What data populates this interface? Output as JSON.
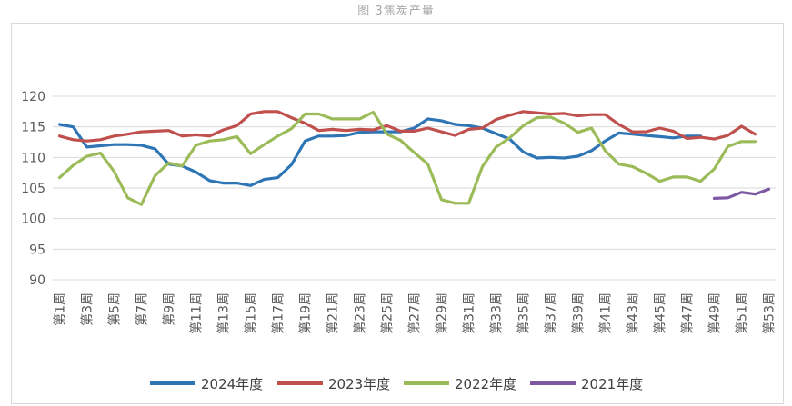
{
  "caption": "图 3焦炭产量",
  "chart_data": {
    "type": "line",
    "title": "图 3焦炭产量",
    "xlabel": "",
    "ylabel": "",
    "ylim": [
      90,
      120
    ],
    "yticks": [
      90,
      95,
      100,
      105,
      110,
      115,
      120
    ],
    "grid": true,
    "legend_position": "bottom",
    "x": [
      "第1周",
      "第2周",
      "第3周",
      "第4周",
      "第5周",
      "第6周",
      "第7周",
      "第8周",
      "第9周",
      "第10周",
      "第11周",
      "第12周",
      "第13周",
      "第14周",
      "第15周",
      "第16周",
      "第17周",
      "第18周",
      "第19周",
      "第20周",
      "第21周",
      "第22周",
      "第23周",
      "第24周",
      "第25周",
      "第26周",
      "第27周",
      "第28周",
      "第29周",
      "第30周",
      "第31周",
      "第32周",
      "第33周",
      "第34周",
      "第35周",
      "第36周",
      "第37周",
      "第38周",
      "第39周",
      "第40周",
      "第41周",
      "第42周",
      "第43周",
      "第44周",
      "第45周",
      "第46周",
      "第47周",
      "第48周",
      "第49周",
      "第50周",
      "第51周",
      "第52周",
      "第53周"
    ],
    "tick_labels": [
      "第1周",
      "第3周",
      "第5周",
      "第7周",
      "第9周",
      "第11周",
      "第13周",
      "第15周",
      "第17周",
      "第19周",
      "第21周",
      "第23周",
      "第25周",
      "第27周",
      "第29周",
      "第31周",
      "第33周",
      "第35周",
      "第37周",
      "第39周",
      "第41周",
      "第43周",
      "第45周",
      "第47周",
      "第49周",
      "第51周",
      "第53周"
    ],
    "series": [
      {
        "name": "2024年度",
        "color": "#2e75b6",
        "values": [
          115.4,
          115.0,
          111.7,
          111.9,
          112.1,
          112.1,
          112.0,
          111.4,
          108.9,
          108.6,
          107.6,
          106.2,
          105.8,
          105.8,
          105.4,
          106.4,
          106.7,
          108.8,
          112.7,
          113.5,
          113.5,
          113.6,
          114.1,
          114.2,
          114.2,
          114.2,
          114.8,
          116.3,
          116.0,
          115.4,
          115.2,
          114.8,
          113.9,
          113.0,
          110.9,
          109.9,
          110.0,
          109.9,
          110.2,
          111.1,
          112.7,
          114.0,
          113.8,
          113.6,
          113.4,
          113.2,
          113.5,
          113.5,
          null,
          null,
          null,
          null,
          null
        ]
      },
      {
        "name": "2023年度",
        "color": "#c0504d",
        "values": [
          113.5,
          112.9,
          112.7,
          112.9,
          113.5,
          113.8,
          114.2,
          114.3,
          114.4,
          113.5,
          113.7,
          113.5,
          114.5,
          115.2,
          117.1,
          117.5,
          117.5,
          116.5,
          115.6,
          114.4,
          114.6,
          114.4,
          114.6,
          114.5,
          115.2,
          114.3,
          114.3,
          114.8,
          114.2,
          113.6,
          114.6,
          114.8,
          116.2,
          116.9,
          117.5,
          117.3,
          117.1,
          117.2,
          116.8,
          117.0,
          117.0,
          115.4,
          114.2,
          114.2,
          114.8,
          114.3,
          113.1,
          113.3,
          113.0,
          113.6,
          115.1,
          113.8,
          null
        ]
      },
      {
        "name": "2022年度",
        "color": "#9bbb59",
        "values": [
          106.7,
          108.7,
          110.2,
          110.7,
          107.7,
          103.4,
          102.3,
          107.0,
          109.1,
          108.6,
          112.0,
          112.7,
          112.9,
          113.4,
          110.6,
          112.1,
          113.5,
          114.7,
          117.1,
          117.1,
          116.3,
          116.3,
          116.3,
          117.4,
          113.8,
          112.8,
          110.8,
          108.9,
          103.1,
          102.5,
          102.5,
          108.5,
          111.7,
          113.2,
          115.2,
          116.5,
          116.6,
          115.6,
          114.1,
          114.8,
          111.1,
          108.9,
          108.5,
          107.4,
          106.1,
          106.8,
          106.8,
          106.1,
          108.1,
          111.8,
          112.6,
          112.6,
          null
        ]
      },
      {
        "name": "2021年度",
        "color": "#7e57a3",
        "values": [
          null,
          null,
          null,
          null,
          null,
          null,
          null,
          null,
          null,
          null,
          null,
          null,
          null,
          null,
          null,
          null,
          null,
          null,
          null,
          null,
          null,
          null,
          null,
          null,
          null,
          null,
          null,
          null,
          null,
          null,
          null,
          null,
          null,
          null,
          null,
          null,
          null,
          null,
          null,
          null,
          null,
          null,
          null,
          null,
          null,
          null,
          null,
          null,
          103.3,
          103.4,
          104.3,
          104.0,
          104.8
        ]
      }
    ]
  }
}
